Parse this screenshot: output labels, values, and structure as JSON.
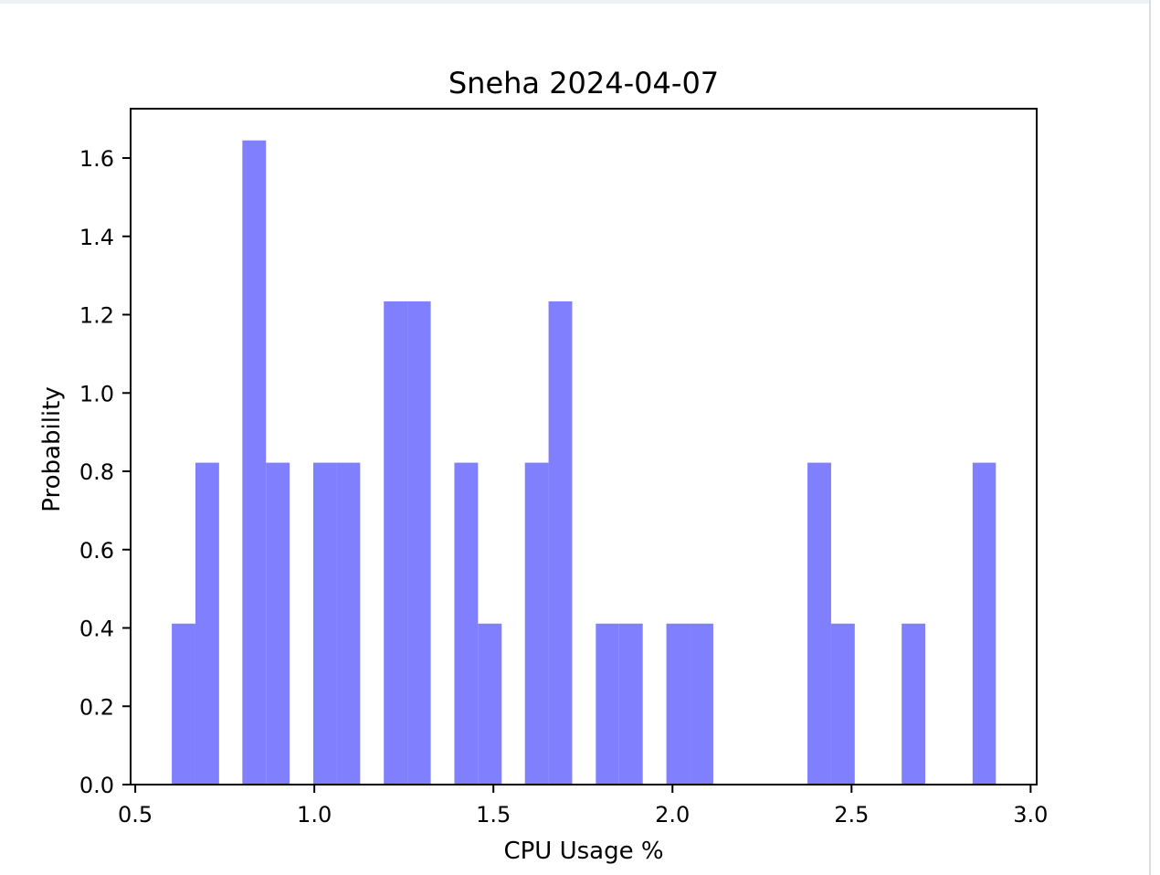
{
  "chart_data": {
    "type": "bar",
    "title": "Sneha 2024-04-07",
    "xlabel": "CPU Usage %",
    "ylabel": "Probability",
    "xlim": [
      0.487,
      3.017
    ],
    "ylim": [
      0.0,
      1.726
    ],
    "xticks": [
      "0.5",
      "1.0",
      "1.5",
      "2.0",
      "2.5",
      "3.0"
    ],
    "yticks": [
      "0.0",
      "0.2",
      "0.4",
      "0.6",
      "0.8",
      "1.0",
      "1.2",
      "1.4",
      "1.6"
    ],
    "grid": false,
    "bar_color": "#8080ff",
    "bins": [
      {
        "x0": 0.602,
        "x1": 0.668,
        "value": 0.411
      },
      {
        "x0": 0.668,
        "x1": 0.734,
        "value": 0.822
      },
      {
        "x0": 0.734,
        "x1": 0.799,
        "value": 0.0
      },
      {
        "x0": 0.799,
        "x1": 0.865,
        "value": 1.645
      },
      {
        "x0": 0.865,
        "x1": 0.931,
        "value": 0.822
      },
      {
        "x0": 0.931,
        "x1": 0.997,
        "value": 0.0
      },
      {
        "x0": 0.997,
        "x1": 1.062,
        "value": 0.822
      },
      {
        "x0": 1.062,
        "x1": 1.128,
        "value": 0.822
      },
      {
        "x0": 1.128,
        "x1": 1.194,
        "value": 0.0
      },
      {
        "x0": 1.194,
        "x1": 1.26,
        "value": 1.234
      },
      {
        "x0": 1.26,
        "x1": 1.325,
        "value": 1.234
      },
      {
        "x0": 1.325,
        "x1": 1.391,
        "value": 0.0
      },
      {
        "x0": 1.391,
        "x1": 1.457,
        "value": 0.822
      },
      {
        "x0": 1.457,
        "x1": 1.523,
        "value": 0.411
      },
      {
        "x0": 1.523,
        "x1": 1.588,
        "value": 0.0
      },
      {
        "x0": 1.588,
        "x1": 1.654,
        "value": 0.822
      },
      {
        "x0": 1.654,
        "x1": 1.72,
        "value": 1.234
      },
      {
        "x0": 1.72,
        "x1": 1.786,
        "value": 0.0
      },
      {
        "x0": 1.786,
        "x1": 1.851,
        "value": 0.411
      },
      {
        "x0": 1.851,
        "x1": 1.917,
        "value": 0.411
      },
      {
        "x0": 1.917,
        "x1": 1.983,
        "value": 0.0
      },
      {
        "x0": 1.983,
        "x1": 2.049,
        "value": 0.411
      },
      {
        "x0": 2.049,
        "x1": 2.114,
        "value": 0.411
      },
      {
        "x0": 2.114,
        "x1": 2.18,
        "value": 0.0
      },
      {
        "x0": 2.18,
        "x1": 2.246,
        "value": 0.0
      },
      {
        "x0": 2.246,
        "x1": 2.312,
        "value": 0.0
      },
      {
        "x0": 2.312,
        "x1": 2.377,
        "value": 0.0
      },
      {
        "x0": 2.377,
        "x1": 2.443,
        "value": 0.822
      },
      {
        "x0": 2.443,
        "x1": 2.509,
        "value": 0.411
      },
      {
        "x0": 2.509,
        "x1": 2.575,
        "value": 0.0
      },
      {
        "x0": 2.575,
        "x1": 2.64,
        "value": 0.0
      },
      {
        "x0": 2.64,
        "x1": 2.706,
        "value": 0.411
      },
      {
        "x0": 2.706,
        "x1": 2.772,
        "value": 0.0
      },
      {
        "x0": 2.772,
        "x1": 2.838,
        "value": 0.0
      },
      {
        "x0": 2.838,
        "x1": 2.903,
        "value": 0.822
      }
    ]
  }
}
